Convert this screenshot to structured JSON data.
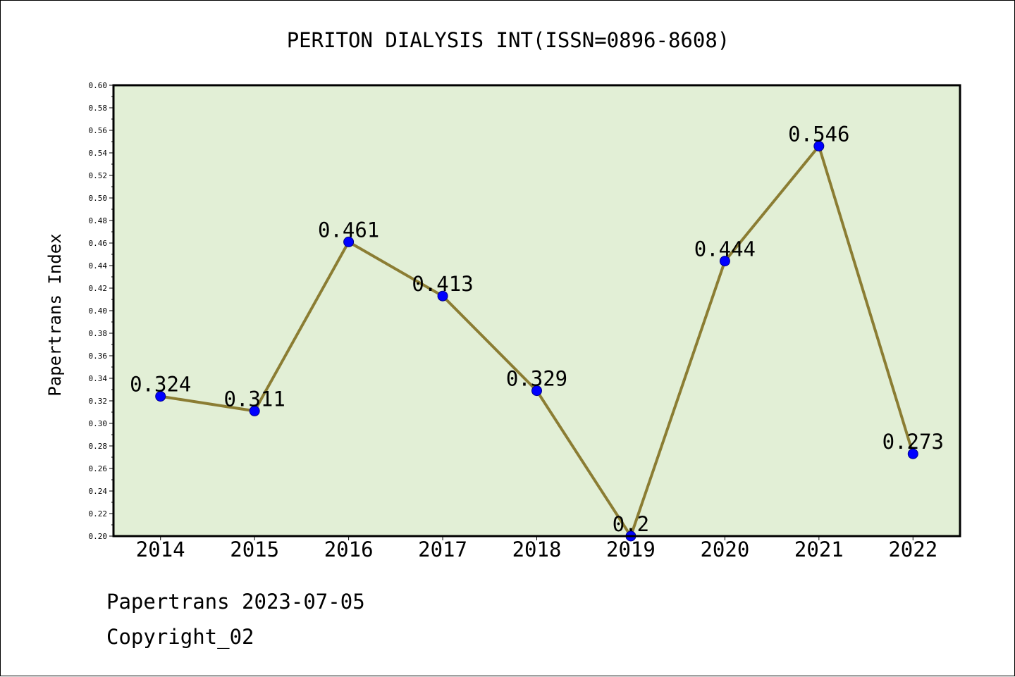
{
  "chart_data": {
    "type": "line",
    "title": "PERITON DIALYSIS INT(ISSN=0896-8608)",
    "xlabel": "",
    "ylabel": "Papertrans Index",
    "categories": [
      "2014",
      "2015",
      "2016",
      "2017",
      "2018",
      "2019",
      "2020",
      "2021",
      "2022"
    ],
    "values": [
      0.324,
      0.311,
      0.461,
      0.413,
      0.329,
      0.2,
      0.444,
      0.546,
      0.273
    ],
    "data_labels": [
      "0.324",
      "0.311",
      "0.461",
      "0.413",
      "0.329",
      "0.2",
      "0.444",
      "0.546",
      "0.273"
    ],
    "ylim": [
      0.2,
      0.6
    ],
    "yticks": [
      "0.20",
      "0.22",
      "0.24",
      "0.26",
      "0.28",
      "0.30",
      "0.32",
      "0.34",
      "0.36",
      "0.38",
      "0.40",
      "0.42",
      "0.44",
      "0.46",
      "0.48",
      "0.50",
      "0.52",
      "0.54",
      "0.56",
      "0.58",
      "0.60"
    ],
    "grid": false,
    "legend": "none",
    "colors": {
      "plot_background": "#e2efd6",
      "line": "#8b7d33",
      "marker": "#0000ff"
    }
  },
  "footer": {
    "source": "Papertrans 2023-07-05",
    "copyright": "Copyright_02"
  }
}
